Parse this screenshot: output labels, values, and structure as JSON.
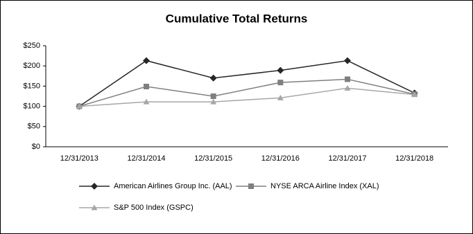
{
  "chart_data": {
    "type": "line",
    "title": "Cumulative Total Returns",
    "categories": [
      "12/31/2013",
      "12/31/2014",
      "12/31/2015",
      "12/31/2016",
      "12/31/2017",
      "12/31/2018"
    ],
    "series": [
      {
        "name": "American Airlines Group Inc. (AAL)",
        "color": "#262626",
        "marker": "diamond",
        "values": [
          100,
          213,
          170,
          189,
          213,
          133
        ]
      },
      {
        "name": "NYSE ARCA Airline Index (XAL)",
        "color": "#7f7f7f",
        "marker": "square",
        "values": [
          100,
          149,
          125,
          159,
          167,
          130
        ]
      },
      {
        "name": "S&P 500 Index (GSPC)",
        "color": "#a6a6a6",
        "marker": "triangle",
        "values": [
          100,
          111,
          111,
          121,
          145,
          129
        ]
      }
    ],
    "ylim": [
      0,
      250
    ],
    "yticks": [
      {
        "value": 0,
        "label": "$0"
      },
      {
        "value": 50,
        "label": "$50"
      },
      {
        "value": 100,
        "label": "$100"
      },
      {
        "value": 150,
        "label": "$150"
      },
      {
        "value": 200,
        "label": "$200"
      },
      {
        "value": 250,
        "label": "$250"
      }
    ],
    "grid": false,
    "legend": "bottom"
  }
}
